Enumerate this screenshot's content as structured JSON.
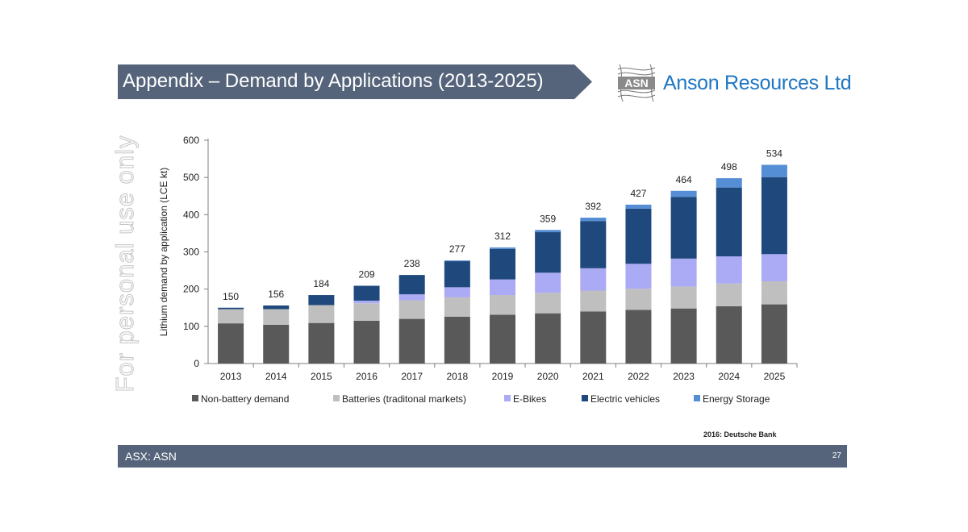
{
  "slide": {
    "title": "Appendix – Demand by Applications (2013-2025)",
    "logo_mark_text": "ASN",
    "company": "Anson Resources Ltd",
    "watermark": "For personal use only",
    "source": "2016: Deutsche Bank",
    "footer_left": "ASX: ASN",
    "page_number": "27"
  },
  "colors": {
    "banner": "#55647a",
    "brand": "#1f76c4"
  },
  "chart_data": {
    "type": "bar",
    "stacked": true,
    "title": "",
    "xlabel": "",
    "ylabel": "Lithium demand by application (LCE kt)",
    "ylim": [
      0,
      600
    ],
    "yticks": [
      0,
      100,
      200,
      300,
      400,
      500,
      600
    ],
    "categories": [
      "2013",
      "2014",
      "2015",
      "2016",
      "2017",
      "2018",
      "2019",
      "2020",
      "2021",
      "2022",
      "2023",
      "2024",
      "2025"
    ],
    "totals": [
      150,
      156,
      184,
      209,
      238,
      277,
      312,
      359,
      392,
      427,
      464,
      498,
      534
    ],
    "legend_position": "bottom",
    "series": [
      {
        "name": "Non-battery demand",
        "color": "#595959",
        "values": [
          108,
          104,
          109,
          115,
          120,
          126,
          131,
          135,
          140,
          144,
          148,
          154,
          159
        ]
      },
      {
        "name": "Batteries (traditonal markets)",
        "color": "#bfbfbf",
        "values": [
          38,
          42,
          48,
          47,
          50,
          52,
          53,
          55,
          56,
          57,
          59,
          61,
          62
        ]
      },
      {
        "name": "E-Bikes",
        "color": "#aaaaf5",
        "values": [
          0,
          0,
          0,
          7,
          16,
          27,
          42,
          54,
          60,
          67,
          75,
          73,
          73
        ]
      },
      {
        "name": "Electric vehicles",
        "color": "#1f497d",
        "values": [
          4,
          10,
          27,
          40,
          52,
          70,
          82,
          109,
          127,
          148,
          166,
          185,
          207
        ]
      },
      {
        "name": "Energy Storage",
        "color": "#558ed5",
        "values": [
          0,
          0,
          0,
          0,
          0,
          2,
          4,
          6,
          9,
          11,
          16,
          25,
          33
        ]
      }
    ]
  }
}
